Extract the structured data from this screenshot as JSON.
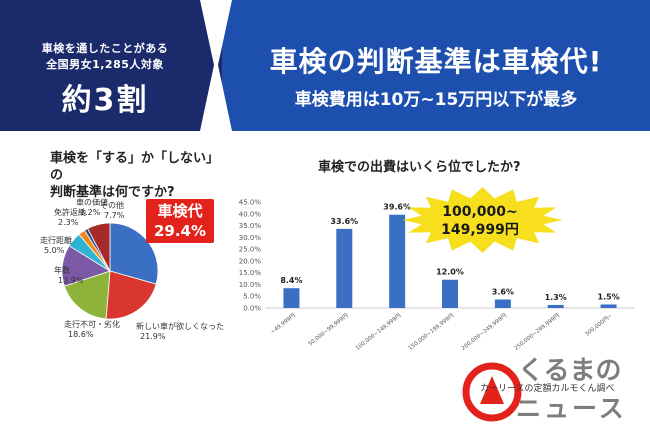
{
  "banner": {
    "survey_line1": "車検を通したことがある",
    "survey_line2": "全国男女1,285人対象",
    "ratio": "約3割",
    "headline": "車検の判断基準は車検代!",
    "subheadline": "車検費用は10万~15万円以下が最多"
  },
  "colors": {
    "banner_blue": "#1d4fae",
    "banner_navy": "#1b2a6b",
    "callout_red": "#e3231b",
    "burst_yellow": "#f7df1e",
    "bar_blue": "#3a6fc4"
  },
  "pie": {
    "question_line1": "車検を「する」か「しない」の",
    "question_line2": "判断基準は何ですか?",
    "callout_line1": "車検代",
    "callout_line2": "29.4%"
  },
  "bar": {
    "question": "車検での出費はいくら位でしたか?",
    "callout_line1": "100,000~",
    "callout_line2": "149,999円"
  },
  "chart_data": [
    {
      "type": "pie",
      "title": "車検を「する」か「しない」の判断基準は何ですか?",
      "slices": [
        {
          "label": "車検代",
          "value": 29.4,
          "value_label": "",
          "color": "#3a6fc4"
        },
        {
          "label": "新しい車が欲しくなった",
          "value": 21.9,
          "value_label": "21.9%",
          "color": "#d9362f"
        },
        {
          "label": "走行不可・劣化",
          "value": 18.6,
          "value_label": "18.6%",
          "color": "#8db33a"
        },
        {
          "label": "年数",
          "value": 13.9,
          "value_label": "13.9%",
          "color": "#7b59a7"
        },
        {
          "label": "走行距離",
          "value": 5.0,
          "value_label": "5.0%",
          "color": "#2eb3d3"
        },
        {
          "label": "免許返納",
          "value": 2.3,
          "value_label": "2.3%",
          "color": "#f08a1c"
        },
        {
          "label": "車の価値",
          "value": 1.2,
          "value_label": "1.2%",
          "color": "#2d4a8a"
        },
        {
          "label": "その他",
          "value": 7.7,
          "value_label": "7.7%",
          "color": "#a52a2a"
        }
      ]
    },
    {
      "type": "bar",
      "title": "車検での出費はいくら位でしたか?",
      "categories": [
        "~49,999円",
        "50,000~99,999円",
        "100,000~149,999円",
        "150,000~199,999円",
        "200,000~249,999円",
        "250,000~299,999円",
        "300,000円~"
      ],
      "values": [
        8.4,
        33.6,
        39.6,
        12.0,
        3.6,
        1.3,
        1.5
      ],
      "value_labels": [
        "8.4%",
        "33.6%",
        "39.6%",
        "12.0%",
        "3.6%",
        "1.3%",
        "1.5%"
      ],
      "ylim": [
        0,
        45
      ],
      "yticks": [
        "0.0%",
        "5.0%",
        "10.0%",
        "15.0%",
        "20.0%",
        "25.0%",
        "30.0%",
        "35.0%",
        "40.0%",
        "45.0%"
      ],
      "grid": false
    }
  ],
  "footer": {
    "source": "カーリースの定額カルモくん調べ",
    "logo_line1": "くるまの",
    "logo_line2": "ニュース"
  }
}
